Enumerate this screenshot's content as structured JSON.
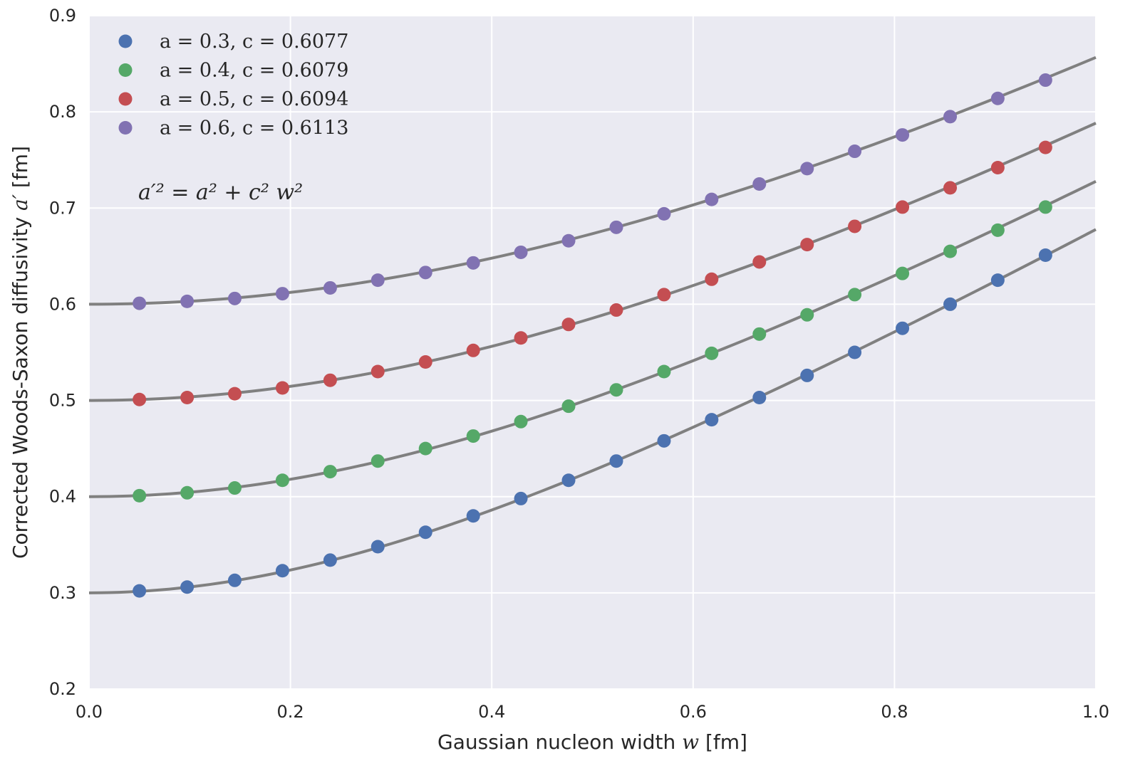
{
  "chart_data": {
    "type": "scatter",
    "xlabel_prefix": "Gaussian nucleon width ",
    "xlabel_var": "w",
    "xlabel_suffix": " [fm]",
    "ylabel_prefix": "Corrected Woods-Saxon diffusivity ",
    "ylabel_var": "a′",
    "ylabel_suffix": " [fm]",
    "xlim": [
      0.0,
      1.0
    ],
    "ylim": [
      0.2,
      0.9
    ],
    "xticks": [
      "0.0",
      "0.2",
      "0.4",
      "0.6",
      "0.8",
      "1.0"
    ],
    "yticks": [
      "0.2",
      "0.3",
      "0.4",
      "0.5",
      "0.6",
      "0.7",
      "0.8",
      "0.9"
    ],
    "grid": true,
    "legend_position": "top-left",
    "annotation": "a′² = a² + c² w²",
    "fit_line_color": "#808080",
    "x": [
      0.05,
      0.0974,
      0.1447,
      0.1921,
      0.2395,
      0.2868,
      0.3342,
      0.3816,
      0.4289,
      0.4763,
      0.5237,
      0.5711,
      0.6184,
      0.6658,
      0.7132,
      0.7605,
      0.8079,
      0.8553,
      0.9026,
      0.95
    ],
    "series": [
      {
        "name": "a = 0.3, c = 0.6077",
        "a": 0.3,
        "c": 0.6077,
        "color": "#4c72b0",
        "values": [
          0.302,
          0.306,
          0.313,
          0.323,
          0.334,
          0.348,
          0.363,
          0.38,
          0.398,
          0.417,
          0.437,
          0.458,
          0.48,
          0.503,
          0.526,
          0.55,
          0.575,
          0.6,
          0.625,
          0.651
        ]
      },
      {
        "name": "a = 0.4, c = 0.6079",
        "a": 0.4,
        "c": 0.6079,
        "color": "#55a868",
        "values": [
          0.401,
          0.404,
          0.409,
          0.417,
          0.426,
          0.437,
          0.45,
          0.463,
          0.478,
          0.494,
          0.511,
          0.53,
          0.549,
          0.569,
          0.589,
          0.61,
          0.632,
          0.655,
          0.677,
          0.701
        ]
      },
      {
        "name": "a = 0.5, c = 0.6094",
        "a": 0.5,
        "c": 0.6094,
        "color": "#c44e52",
        "values": [
          0.501,
          0.503,
          0.507,
          0.513,
          0.521,
          0.53,
          0.54,
          0.552,
          0.565,
          0.579,
          0.594,
          0.61,
          0.626,
          0.644,
          0.662,
          0.681,
          0.701,
          0.721,
          0.742,
          0.763
        ]
      },
      {
        "name": "a = 0.6, c = 0.6113",
        "a": 0.6,
        "c": 0.6113,
        "color": "#8172b2",
        "values": [
          0.601,
          0.603,
          0.606,
          0.611,
          0.617,
          0.625,
          0.633,
          0.643,
          0.654,
          0.666,
          0.68,
          0.694,
          0.709,
          0.725,
          0.741,
          0.759,
          0.776,
          0.795,
          0.814,
          0.833
        ]
      }
    ]
  }
}
